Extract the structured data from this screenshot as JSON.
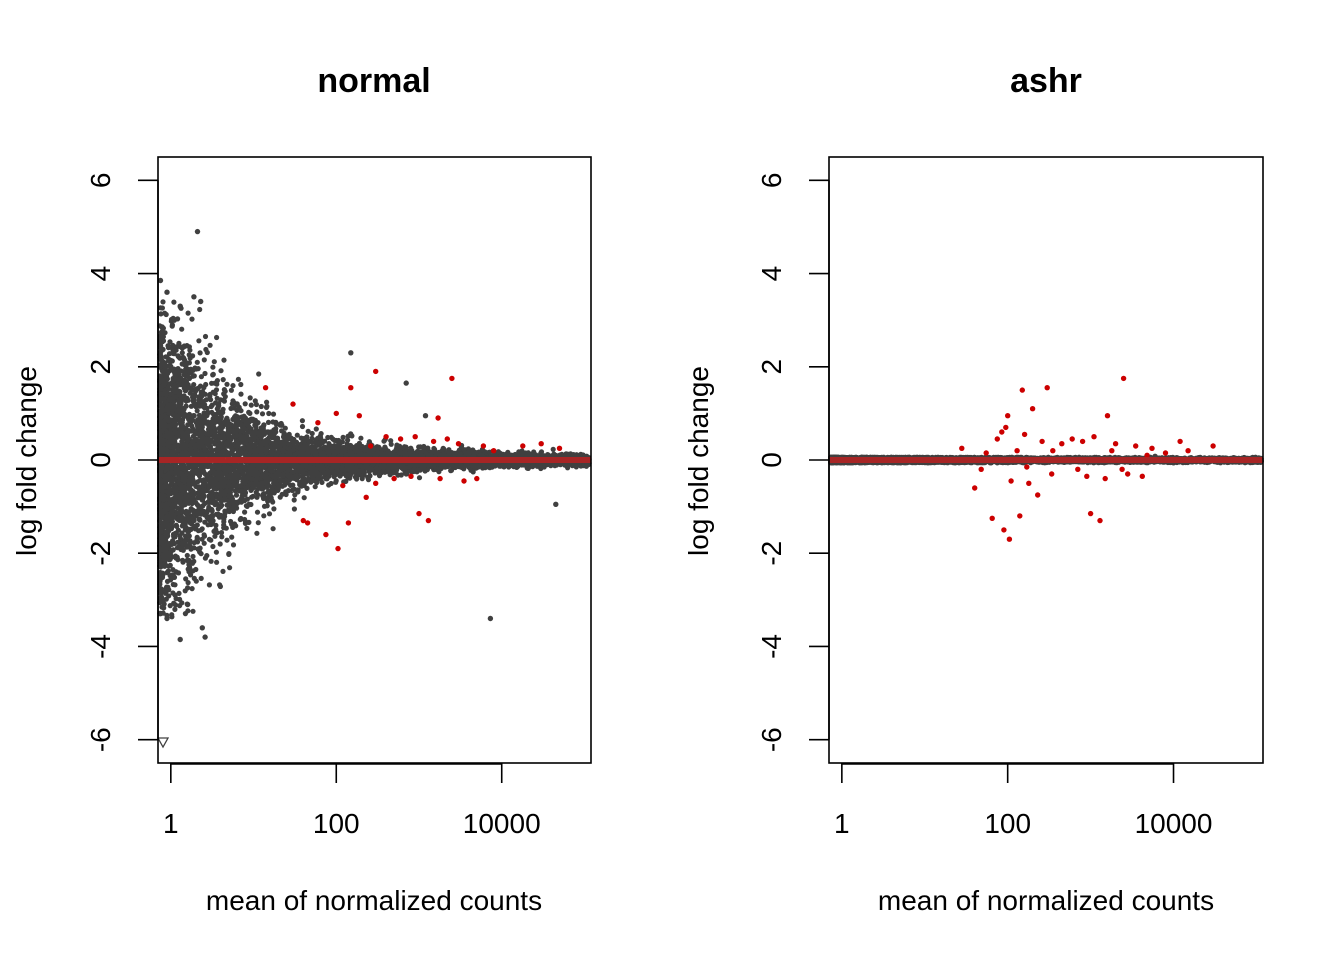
{
  "chart_data": [
    {
      "type": "scatter",
      "title": "normal",
      "xlabel": "mean of normalized counts",
      "ylabel": "log fold change",
      "x_scale": "log10",
      "xlim": [
        0.7,
        120000
      ],
      "ylim": [
        -6.5,
        6.5
      ],
      "x_ticks": [
        1,
        100,
        10000
      ],
      "x_tick_labels": [
        "1",
        "100",
        "10000"
      ],
      "y_ticks": [
        -6,
        -4,
        -2,
        0,
        2,
        4,
        6
      ],
      "y_tick_labels": [
        "-6",
        "-4",
        "-2",
        "0",
        "2",
        "4",
        "6"
      ],
      "grid": false,
      "colors": {
        "not_significant": "#404040",
        "significant": "#cc0000",
        "zero_line": "#b22222"
      },
      "spread": {
        "max_abs_lfc_low": 3.4,
        "decay": 1.0
      },
      "series": [
        {
          "role": "not_significant",
          "points": [
            {
              "x": 2.1,
              "y": 4.9
            },
            {
              "x": 1.9,
              "y": 3.5
            },
            {
              "x": 2.3,
              "y": 3.4
            },
            {
              "x": 0.75,
              "y": 3.85
            },
            {
              "x": 0.9,
              "y": 3.6
            },
            {
              "x": 1.3,
              "y": 3.3
            },
            {
              "x": 150,
              "y": 2.3
            },
            {
              "x": 700,
              "y": 1.65
            },
            {
              "x": 1200,
              "y": 0.95
            },
            {
              "x": 1.3,
              "y": -3.85
            },
            {
              "x": 2.4,
              "y": -3.6
            },
            {
              "x": 2.6,
              "y": -3.8
            },
            {
              "x": 7300,
              "y": -3.4
            },
            {
              "x": 45000,
              "y": -0.95
            },
            {
              "x": 30000,
              "y": 0.1
            },
            {
              "x": 60000,
              "y": 0.1
            },
            {
              "x": 90000,
              "y": 0.05
            },
            {
              "x": 0.9,
              "y": -3.4
            },
            {
              "x": 1.6,
              "y": -3.1
            },
            {
              "x": 1.1,
              "y": 3.0
            }
          ]
        },
        {
          "role": "significant",
          "points": [
            {
              "x": 14,
              "y": 1.55
            },
            {
              "x": 30,
              "y": 1.2
            },
            {
              "x": 150,
              "y": 1.55
            },
            {
              "x": 300,
              "y": 1.9
            },
            {
              "x": 2500,
              "y": 1.75
            },
            {
              "x": 100,
              "y": 1.0
            },
            {
              "x": 1700,
              "y": 0.9
            },
            {
              "x": 190,
              "y": 0.95
            },
            {
              "x": 60,
              "y": 0.8
            },
            {
              "x": 140,
              "y": -1.35
            },
            {
              "x": 105,
              "y": -1.9
            },
            {
              "x": 75,
              "y": -1.6
            },
            {
              "x": 1000,
              "y": -1.15
            },
            {
              "x": 1300,
              "y": -1.3
            },
            {
              "x": 40,
              "y": -1.3
            },
            {
              "x": 45,
              "y": -1.35
            },
            {
              "x": 230,
              "y": -0.8
            },
            {
              "x": 30000,
              "y": 0.35
            },
            {
              "x": 18000,
              "y": 0.3
            },
            {
              "x": 50000,
              "y": 0.25
            },
            {
              "x": 400,
              "y": 0.5
            },
            {
              "x": 600,
              "y": 0.45
            },
            {
              "x": 900,
              "y": 0.5
            },
            {
              "x": 1500,
              "y": 0.4
            },
            {
              "x": 2200,
              "y": 0.45
            },
            {
              "x": 3000,
              "y": 0.35
            },
            {
              "x": 500,
              "y": -0.4
            },
            {
              "x": 800,
              "y": -0.35
            },
            {
              "x": 1800,
              "y": -0.4
            },
            {
              "x": 3500,
              "y": -0.45
            },
            {
              "x": 5000,
              "y": -0.4
            },
            {
              "x": 300,
              "y": -0.5
            },
            {
              "x": 120,
              "y": -0.55
            },
            {
              "x": 260,
              "y": 0.3
            },
            {
              "x": 6000,
              "y": 0.3
            },
            {
              "x": 8000,
              "y": 0.2
            }
          ]
        }
      ],
      "zero_line": 0
    },
    {
      "type": "scatter",
      "title": "ashr",
      "xlabel": "mean of normalized counts",
      "ylabel": "log fold change",
      "x_scale": "log10",
      "xlim": [
        0.7,
        120000
      ],
      "ylim": [
        -6.5,
        6.5
      ],
      "x_ticks": [
        1,
        100,
        10000
      ],
      "x_tick_labels": [
        "1",
        "100",
        "10000"
      ],
      "y_ticks": [
        -6,
        -4,
        -2,
        0,
        2,
        4,
        6
      ],
      "y_tick_labels": [
        "-6",
        "-4",
        "-2",
        "0",
        "2",
        "4",
        "6"
      ],
      "grid": false,
      "colors": {
        "not_significant": "#404040",
        "significant": "#cc0000",
        "zero_line": "#b22222"
      },
      "spread": {
        "max_abs_lfc_low": 0.06,
        "decay": 0.2
      },
      "series": [
        {
          "role": "not_significant",
          "points": [
            {
              "x": 1500,
              "y": 0.05
            },
            {
              "x": 3000,
              "y": -0.05
            },
            {
              "x": 6000,
              "y": 0.08
            },
            {
              "x": 10000,
              "y": -0.06
            },
            {
              "x": 20000,
              "y": 0.05
            }
          ]
        },
        {
          "role": "significant",
          "points": [
            {
              "x": 150,
              "y": 1.5
            },
            {
              "x": 300,
              "y": 1.55
            },
            {
              "x": 2500,
              "y": 1.75
            },
            {
              "x": 100,
              "y": 0.95
            },
            {
              "x": 200,
              "y": 1.1
            },
            {
              "x": 1600,
              "y": 0.95
            },
            {
              "x": 1000,
              "y": -1.15
            },
            {
              "x": 1300,
              "y": -1.3
            },
            {
              "x": 65,
              "y": -1.25
            },
            {
              "x": 90,
              "y": -1.5
            },
            {
              "x": 105,
              "y": -1.7
            },
            {
              "x": 140,
              "y": -1.2
            },
            {
              "x": 40,
              "y": -0.6
            },
            {
              "x": 28,
              "y": 0.25
            },
            {
              "x": 75,
              "y": 0.45
            },
            {
              "x": 85,
              "y": 0.6
            },
            {
              "x": 95,
              "y": 0.7
            },
            {
              "x": 110,
              "y": -0.45
            },
            {
              "x": 160,
              "y": 0.55
            },
            {
              "x": 180,
              "y": -0.5
            },
            {
              "x": 230,
              "y": -0.75
            },
            {
              "x": 260,
              "y": 0.4
            },
            {
              "x": 340,
              "y": -0.3
            },
            {
              "x": 450,
              "y": 0.35
            },
            {
              "x": 600,
              "y": 0.45
            },
            {
              "x": 800,
              "y": 0.4
            },
            {
              "x": 900,
              "y": -0.35
            },
            {
              "x": 1100,
              "y": 0.5
            },
            {
              "x": 1500,
              "y": -0.4
            },
            {
              "x": 2000,
              "y": 0.35
            },
            {
              "x": 2800,
              "y": -0.3
            },
            {
              "x": 3500,
              "y": 0.3
            },
            {
              "x": 4200,
              "y": -0.35
            },
            {
              "x": 5500,
              "y": 0.25
            },
            {
              "x": 12000,
              "y": 0.4
            },
            {
              "x": 30000,
              "y": 0.3
            },
            {
              "x": 15000,
              "y": 0.2
            },
            {
              "x": 8000,
              "y": 0.15
            },
            {
              "x": 55,
              "y": 0.15
            },
            {
              "x": 48,
              "y": -0.2
            },
            {
              "x": 130,
              "y": 0.2
            },
            {
              "x": 170,
              "y": -0.15
            },
            {
              "x": 350,
              "y": 0.2
            },
            {
              "x": 700,
              "y": -0.2
            },
            {
              "x": 1800,
              "y": 0.2
            },
            {
              "x": 2400,
              "y": -0.2
            },
            {
              "x": 4800,
              "y": 0.1
            }
          ]
        }
      ],
      "zero_line": 0
    }
  ]
}
